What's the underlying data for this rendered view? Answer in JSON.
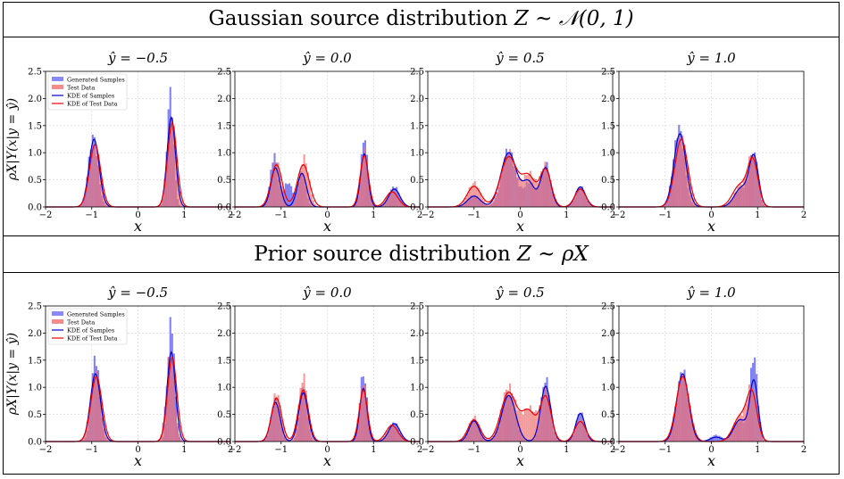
{
  "sections": [
    {
      "title_text": "Gaussian source distribution ",
      "title_math": "Z ~ 𝒩(0, 1)"
    },
    {
      "title_text": "Prior source distribution ",
      "title_math": "Z ~ ρX"
    }
  ],
  "colors": {
    "generated_samples": "#6b6bf5",
    "test_data": "#f07070",
    "kde_samples": "#0000cc",
    "kde_test": "#ee0000"
  },
  "chart_data": [
    {
      "type": "bar",
      "section": 0,
      "panel_title": "ŷ = −0.5",
      "xlabel": "x",
      "ylabel": "ρX|Y(x|y = ŷ)",
      "xlim": [
        -2,
        2
      ],
      "ylim": [
        0,
        2.5
      ],
      "xticks": [
        "−2",
        "−1",
        "0",
        "1",
        "2"
      ],
      "yticks": [
        "0.0",
        "0.5",
        "1.0",
        "1.5",
        "2.0",
        "2.5"
      ],
      "grid": true,
      "legend": {
        "placement": "top-left",
        "entries": [
          "Generated Samples",
          "Test Data",
          "KDE of Samples",
          "KDE of Test Data"
        ]
      },
      "series": [
        {
          "name": "Generated Samples",
          "kind": "histogram",
          "peaks": [
            [
              -0.97,
              1.3,
              0.1
            ],
            [
              0.7,
              2.1,
              0.07
            ]
          ]
        },
        {
          "name": "Test Data",
          "kind": "histogram",
          "peaks": [
            [
              -0.93,
              1.15,
              0.11
            ],
            [
              0.73,
              1.65,
              0.09
            ]
          ]
        },
        {
          "name": "KDE of Samples",
          "kind": "kde",
          "peaks": [
            [
              -0.95,
              1.25,
              0.11
            ],
            [
              0.72,
              1.65,
              0.09
            ]
          ]
        },
        {
          "name": "KDE of Test Data",
          "kind": "kde",
          "peaks": [
            [
              -0.93,
              1.15,
              0.12
            ],
            [
              0.74,
              1.55,
              0.1
            ]
          ]
        }
      ]
    },
    {
      "type": "bar",
      "section": 0,
      "panel_title": "ŷ = 0.0",
      "xlabel": "x",
      "xlim": [
        -2,
        2
      ],
      "ylim": [
        0,
        2.5
      ],
      "xticks": [
        "−2",
        "−1",
        "0",
        "1",
        "2"
      ],
      "yticks": [
        "0.0",
        "0.5",
        "1.0",
        "1.5",
        "2.0",
        "2.5"
      ],
      "grid": true,
      "series": [
        {
          "name": "Generated Samples",
          "kind": "histogram",
          "peaks": [
            [
              -1.15,
              0.95,
              0.08
            ],
            [
              -0.85,
              0.45,
              0.1
            ],
            [
              -0.55,
              0.65,
              0.08
            ],
            [
              0.8,
              1.3,
              0.07
            ],
            [
              1.45,
              0.38,
              0.11
            ]
          ]
        },
        {
          "name": "Test Data",
          "kind": "histogram",
          "peaks": [
            [
              -1.1,
              0.85,
              0.1
            ],
            [
              -0.5,
              0.9,
              0.1
            ],
            [
              0.8,
              1.05,
              0.08
            ],
            [
              1.4,
              0.3,
              0.12
            ]
          ]
        },
        {
          "name": "KDE of Samples",
          "kind": "kde",
          "peaks": [
            [
              -1.12,
              0.72,
              0.1
            ],
            [
              -0.55,
              0.62,
              0.1
            ],
            [
              0.8,
              0.98,
              0.08
            ],
            [
              1.45,
              0.33,
              0.12
            ]
          ]
        },
        {
          "name": "KDE of Test Data",
          "kind": "kde",
          "peaks": [
            [
              -1.1,
              0.78,
              0.12
            ],
            [
              -0.52,
              0.78,
              0.13
            ],
            [
              0.8,
              0.95,
              0.09
            ],
            [
              1.4,
              0.28,
              0.13
            ]
          ]
        }
      ]
    },
    {
      "type": "bar",
      "section": 0,
      "panel_title": "ŷ = 0.5",
      "xlabel": "x",
      "xlim": [
        -2,
        2
      ],
      "ylim": [
        0,
        2.5
      ],
      "xticks": [
        "−2",
        "−1",
        "0",
        "1",
        "2"
      ],
      "yticks": [
        "0.0",
        "0.5",
        "1.0",
        "1.5",
        "2.0",
        "2.5"
      ],
      "grid": true,
      "series": [
        {
          "name": "Generated Samples",
          "kind": "histogram",
          "peaks": [
            [
              -1.0,
              0.22,
              0.12
            ],
            [
              -0.25,
              1.05,
              0.15
            ],
            [
              0.2,
              0.45,
              0.12
            ],
            [
              0.55,
              0.8,
              0.1
            ],
            [
              1.3,
              0.38,
              0.1
            ]
          ]
        },
        {
          "name": "Test Data",
          "kind": "histogram",
          "peaks": [
            [
              -1.0,
              0.45,
              0.13
            ],
            [
              -0.25,
              1.0,
              0.16
            ],
            [
              0.2,
              0.6,
              0.14
            ],
            [
              0.55,
              0.75,
              0.11
            ],
            [
              1.3,
              0.35,
              0.11
            ]
          ]
        },
        {
          "name": "KDE of Samples",
          "kind": "kde",
          "peaks": [
            [
              -1.0,
              0.2,
              0.14
            ],
            [
              -0.25,
              1.0,
              0.17
            ],
            [
              0.18,
              0.45,
              0.13
            ],
            [
              0.55,
              0.72,
              0.11
            ],
            [
              1.3,
              0.37,
              0.11
            ]
          ]
        },
        {
          "name": "KDE of Test Data",
          "kind": "kde",
          "peaks": [
            [
              -1.0,
              0.38,
              0.15
            ],
            [
              -0.25,
              0.92,
              0.18
            ],
            [
              0.18,
              0.55,
              0.15
            ],
            [
              0.55,
              0.68,
              0.12
            ],
            [
              1.3,
              0.33,
              0.12
            ]
          ]
        }
      ]
    },
    {
      "type": "bar",
      "section": 0,
      "panel_title": "ŷ = 1.0",
      "xlabel": "x",
      "xlim": [
        -2,
        2
      ],
      "ylim": [
        0,
        2.5
      ],
      "xticks": [
        "−2",
        "−1",
        "0",
        "1",
        "2"
      ],
      "yticks": [
        "0.0",
        "0.5",
        "1.0",
        "1.5",
        "2.0",
        "2.5"
      ],
      "grid": true,
      "series": [
        {
          "name": "Generated Samples",
          "kind": "histogram",
          "peaks": [
            [
              -0.7,
              1.45,
              0.12
            ],
            [
              0.65,
              0.35,
              0.15
            ],
            [
              0.92,
              0.95,
              0.09
            ]
          ]
        },
        {
          "name": "Test Data",
          "kind": "histogram",
          "peaks": [
            [
              -0.65,
              1.3,
              0.13
            ],
            [
              0.65,
              0.4,
              0.15
            ],
            [
              0.9,
              0.9,
              0.1
            ]
          ]
        },
        {
          "name": "KDE of Samples",
          "kind": "kde",
          "peaks": [
            [
              -0.68,
              1.35,
              0.13
            ],
            [
              0.65,
              0.35,
              0.15
            ],
            [
              0.92,
              0.9,
              0.1
            ]
          ]
        },
        {
          "name": "KDE of Test Data",
          "kind": "kde",
          "peaks": [
            [
              -0.65,
              1.25,
              0.14
            ],
            [
              0.62,
              0.4,
              0.16
            ],
            [
              0.9,
              0.82,
              0.11
            ]
          ]
        }
      ]
    },
    {
      "type": "bar",
      "section": 1,
      "panel_title": "ŷ = −0.5",
      "xlabel": "x",
      "ylabel": "ρX|Y(x|y = ŷ)",
      "xlim": [
        -2,
        2
      ],
      "ylim": [
        0,
        2.5
      ],
      "xticks": [
        "−2",
        "−1",
        "0",
        "1",
        "2"
      ],
      "yticks": [
        "0.0",
        "0.5",
        "1.0",
        "1.5",
        "2.0",
        "2.5"
      ],
      "grid": true,
      "legend": {
        "placement": "top-left",
        "entries": [
          "Generated Samples",
          "Test Data",
          "KDE of Samples",
          "KDE of Test Data"
        ]
      },
      "series": [
        {
          "name": "Generated Samples",
          "kind": "histogram",
          "peaks": [
            [
              -0.92,
              1.55,
              0.09
            ],
            [
              0.72,
              2.25,
              0.07
            ]
          ]
        },
        {
          "name": "Test Data",
          "kind": "histogram",
          "peaks": [
            [
              -0.92,
              1.3,
              0.11
            ],
            [
              0.7,
              1.6,
              0.09
            ]
          ]
        },
        {
          "name": "KDE of Samples",
          "kind": "kde",
          "peaks": [
            [
              -0.92,
              1.25,
              0.11
            ],
            [
              0.72,
              1.65,
              0.09
            ]
          ]
        },
        {
          "name": "KDE of Test Data",
          "kind": "kde",
          "peaks": [
            [
              -0.9,
              1.2,
              0.12
            ],
            [
              0.74,
              1.55,
              0.1
            ]
          ]
        }
      ]
    },
    {
      "type": "bar",
      "section": 1,
      "panel_title": "ŷ = 0.0",
      "xlabel": "x",
      "xlim": [
        -2,
        2
      ],
      "ylim": [
        0,
        2.5
      ],
      "xticks": [
        "−2",
        "−1",
        "0",
        "1",
        "2"
      ],
      "yticks": [
        "0.0",
        "0.5",
        "1.0",
        "1.5",
        "2.0",
        "2.5"
      ],
      "grid": true,
      "series": [
        {
          "name": "Generated Samples",
          "kind": "histogram",
          "peaks": [
            [
              -1.12,
              0.8,
              0.09
            ],
            [
              -0.52,
              1.05,
              0.08
            ],
            [
              0.78,
              1.25,
              0.08
            ],
            [
              1.45,
              0.35,
              0.11
            ]
          ]
        },
        {
          "name": "Test Data",
          "kind": "histogram",
          "peaks": [
            [
              -1.1,
              0.9,
              0.1
            ],
            [
              -0.52,
              1.2,
              0.09
            ],
            [
              0.78,
              1.1,
              0.08
            ],
            [
              1.4,
              0.3,
              0.12
            ]
          ]
        },
        {
          "name": "KDE of Samples",
          "kind": "kde",
          "peaks": [
            [
              -1.12,
              0.72,
              0.1
            ],
            [
              -0.52,
              0.9,
              0.1
            ],
            [
              0.78,
              0.98,
              0.08
            ],
            [
              1.45,
              0.33,
              0.12
            ]
          ]
        },
        {
          "name": "KDE of Test Data",
          "kind": "kde",
          "peaks": [
            [
              -1.1,
              0.8,
              0.11
            ],
            [
              -0.52,
              0.95,
              0.11
            ],
            [
              0.78,
              0.95,
              0.09
            ],
            [
              1.4,
              0.3,
              0.13
            ]
          ]
        }
      ]
    },
    {
      "type": "bar",
      "section": 1,
      "panel_title": "ŷ = 0.5",
      "xlabel": "x",
      "xlim": [
        -2,
        2
      ],
      "ylim": [
        0,
        2.5
      ],
      "xticks": [
        "−2",
        "−1",
        "0",
        "1",
        "2"
      ],
      "yticks": [
        "0.0",
        "0.5",
        "1.0",
        "1.5",
        "2.0",
        "2.5"
      ],
      "grid": true,
      "series": [
        {
          "name": "Generated Samples",
          "kind": "histogram",
          "peaks": [
            [
              -1.0,
              0.4,
              0.1
            ],
            [
              -0.25,
              0.9,
              0.14
            ],
            [
              0.55,
              1.15,
              0.1
            ],
            [
              1.3,
              0.55,
              0.09
            ]
          ]
        },
        {
          "name": "Test Data",
          "kind": "histogram",
          "peaks": [
            [
              -1.0,
              0.45,
              0.12
            ],
            [
              -0.25,
              1.0,
              0.16
            ],
            [
              0.2,
              0.6,
              0.15
            ],
            [
              0.55,
              0.9,
              0.11
            ],
            [
              1.3,
              0.4,
              0.11
            ]
          ]
        },
        {
          "name": "KDE of Samples",
          "kind": "kde",
          "peaks": [
            [
              -1.0,
              0.38,
              0.11
            ],
            [
              -0.25,
              0.85,
              0.15
            ],
            [
              0.55,
              1.02,
              0.11
            ],
            [
              1.3,
              0.52,
              0.1
            ]
          ]
        },
        {
          "name": "KDE of Test Data",
          "kind": "kde",
          "peaks": [
            [
              -1.0,
              0.4,
              0.13
            ],
            [
              -0.25,
              0.9,
              0.17
            ],
            [
              0.18,
              0.55,
              0.15
            ],
            [
              0.55,
              0.82,
              0.12
            ],
            [
              1.3,
              0.37,
              0.12
            ]
          ]
        }
      ]
    },
    {
      "type": "bar",
      "section": 1,
      "panel_title": "ŷ = 1.0",
      "xlabel": "x",
      "xlim": [
        -2,
        2
      ],
      "ylim": [
        0,
        2.5
      ],
      "xticks": [
        "−2",
        "−1",
        "0",
        "1",
        "2"
      ],
      "yticks": [
        "0.0",
        "0.5",
        "1.0",
        "1.5",
        "2.0",
        "2.5"
      ],
      "grid": true,
      "series": [
        {
          "name": "Generated Samples",
          "kind": "histogram",
          "peaks": [
            [
              -0.62,
              1.3,
              0.13
            ],
            [
              0.1,
              0.12,
              0.12
            ],
            [
              0.62,
              0.4,
              0.14
            ],
            [
              0.92,
              1.55,
              0.08
            ]
          ]
        },
        {
          "name": "Test Data",
          "kind": "histogram",
          "peaks": [
            [
              -0.62,
              1.2,
              0.14
            ],
            [
              0.62,
              0.45,
              0.15
            ],
            [
              0.88,
              0.95,
              0.1
            ]
          ]
        },
        {
          "name": "KDE of Samples",
          "kind": "kde",
          "peaks": [
            [
              -0.62,
              1.25,
              0.13
            ],
            [
              0.1,
              0.08,
              0.12
            ],
            [
              0.62,
              0.4,
              0.14
            ],
            [
              0.92,
              1.1,
              0.09
            ]
          ]
        },
        {
          "name": "KDE of Test Data",
          "kind": "kde",
          "peaks": [
            [
              -0.62,
              1.2,
              0.14
            ],
            [
              0.62,
              0.45,
              0.15
            ],
            [
              0.88,
              0.85,
              0.11
            ]
          ]
        }
      ]
    }
  ]
}
